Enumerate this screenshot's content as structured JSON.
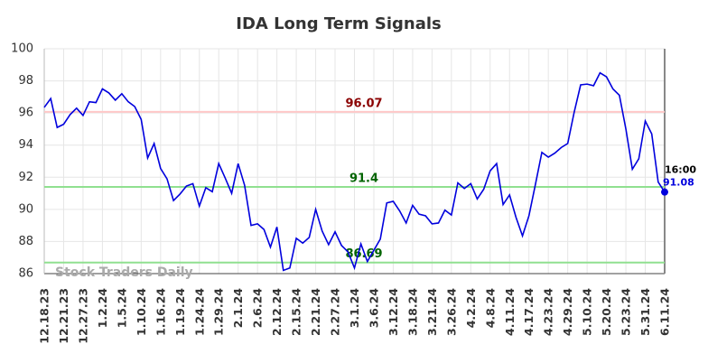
{
  "chart_data": {
    "type": "line",
    "title": "IDA Long Term Signals",
    "categories": [
      "12.18.23",
      null,
      null,
      "12.21.23",
      null,
      null,
      "12.27.23",
      null,
      null,
      "1.2.24",
      null,
      null,
      "1.5.24",
      null,
      null,
      "1.10.24",
      null,
      null,
      "1.16.24",
      null,
      null,
      "1.19.24",
      null,
      null,
      "1.24.24",
      null,
      null,
      "1.29.24",
      null,
      null,
      "2.1.24",
      null,
      null,
      "2.6.24",
      null,
      null,
      "2.12.24",
      null,
      null,
      "2.15.24",
      null,
      null,
      "2.21.24",
      null,
      null,
      "2.27.24",
      null,
      null,
      "3.1.24",
      null,
      null,
      "3.6.24",
      null,
      null,
      "3.12.24",
      null,
      null,
      "3.18.24",
      null,
      null,
      "3.21.24",
      null,
      null,
      "3.26.24",
      null,
      null,
      "4.2.24",
      null,
      null,
      "4.8.24",
      null,
      null,
      "4.11.24",
      null,
      null,
      "4.17.24",
      null,
      null,
      "4.23.24",
      null,
      null,
      "4.29.24",
      null,
      null,
      "5.10.24",
      null,
      null,
      "5.20.24",
      null,
      null,
      "5.23.24",
      null,
      null,
      "5.31.24",
      null,
      null,
      "6.11.24"
    ],
    "values": [
      96.35,
      96.9,
      95.1,
      95.3,
      95.9,
      96.3,
      95.85,
      96.7,
      96.65,
      97.5,
      97.25,
      96.8,
      97.2,
      96.7,
      96.4,
      95.6,
      93.2,
      94.1,
      92.55,
      91.9,
      90.55,
      90.95,
      91.45,
      91.6,
      90.2,
      91.35,
      91.1,
      92.85,
      91.95,
      91.0,
      92.85,
      91.5,
      89.0,
      89.1,
      88.75,
      87.65,
      88.9,
      86.2,
      86.35,
      88.2,
      87.9,
      88.25,
      90.0,
      88.65,
      87.8,
      88.6,
      87.75,
      87.35,
      86.35,
      87.85,
      86.75,
      87.45,
      88.15,
      90.4,
      90.5,
      89.9,
      89.15,
      90.25,
      89.7,
      89.6,
      89.1,
      89.15,
      89.95,
      89.65,
      91.65,
      91.3,
      91.6,
      90.65,
      91.25,
      92.4,
      92.85,
      90.3,
      90.9,
      89.5,
      88.35,
      89.6,
      91.55,
      93.55,
      93.25,
      93.5,
      93.85,
      94.1,
      96.05,
      97.75,
      97.8,
      97.7,
      98.5,
      98.25,
      97.5,
      97.1,
      95.0,
      92.5,
      93.15,
      95.5,
      94.7,
      91.7,
      91.08
    ],
    "color": "#0000dd",
    "ylim": [
      86,
      100
    ],
    "yticks": [
      86,
      88,
      90,
      92,
      94,
      96,
      98,
      100
    ],
    "grid": true,
    "hlines": [
      {
        "value": 96.07,
        "color": "#ffc8c8",
        "label_color": "#8b0000"
      },
      {
        "value": 91.4,
        "color": "#90e090",
        "label_color": "#006400"
      },
      {
        "value": 86.69,
        "color": "#90e090",
        "label_color": "#006400"
      }
    ],
    "last_time": "16:00",
    "watermark": "Stock Traders Daily"
  }
}
